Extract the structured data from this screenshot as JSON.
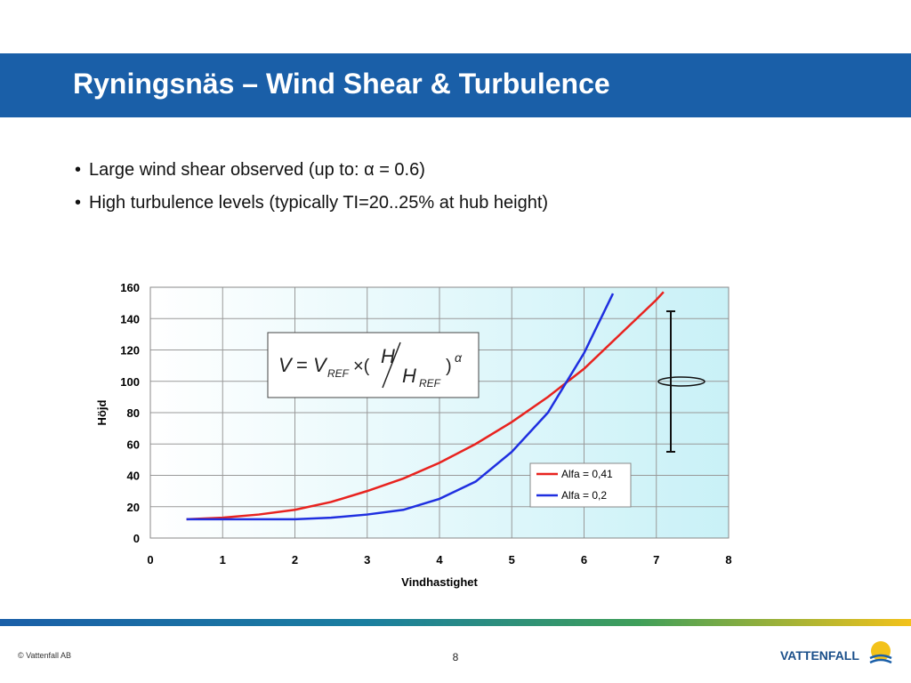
{
  "header": {
    "title": "Ryningsnäs – Wind Shear & Turbulence"
  },
  "bullets": [
    "Large wind shear observed (up to: α = 0.6)",
    "High turbulence levels (typically TI=20..25% at hub height)"
  ],
  "chart_data": {
    "type": "line",
    "xlabel": "Vindhastighet",
    "ylabel": "Höjd",
    "xlim": [
      0,
      8
    ],
    "xticks": [
      0,
      1,
      2,
      3,
      4,
      5,
      6,
      7,
      8
    ],
    "ylim": [
      0,
      160
    ],
    "yticks": [
      0,
      20,
      40,
      60,
      80,
      100,
      120,
      140,
      160
    ],
    "grid": true,
    "legend": "lower right",
    "formula": {
      "lhs": "V",
      "eq": "=",
      "v": "V",
      "v_sub": "REF",
      "times": "×(",
      "h": "H",
      "h_ref": "H",
      "h_ref_sub": "REF",
      "close": ")",
      "exp": "α"
    },
    "series": [
      {
        "name": "Alfa = 0,41",
        "color": "#e8231f",
        "x": [
          0.5,
          1,
          1.5,
          2,
          2.5,
          3,
          3.5,
          4,
          4.5,
          5,
          5.5,
          6,
          6.5,
          7,
          7.1
        ],
        "values": [
          12,
          13,
          15,
          18,
          23,
          30,
          38,
          48,
          60,
          74,
          90,
          108,
          130,
          152,
          157
        ]
      },
      {
        "name": "Alfa = 0,2",
        "color": "#1f2fe0",
        "x": [
          0.5,
          1,
          1.5,
          2,
          2.5,
          3,
          3.5,
          4,
          4.5,
          5,
          5.5,
          6,
          6.4
        ],
        "values": [
          12,
          12,
          12,
          12,
          13,
          15,
          18,
          25,
          36,
          55,
          80,
          118,
          156
        ]
      }
    ]
  },
  "footer": {
    "copyright": "© Vattenfall AB",
    "page": "8",
    "logo": "VATTENFALL"
  }
}
